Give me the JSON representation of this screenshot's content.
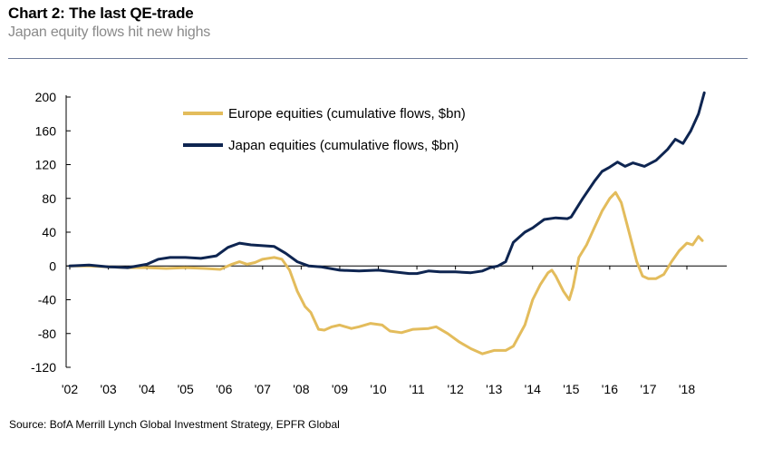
{
  "header": {
    "title": "Chart 2: The last QE-trade",
    "subtitle": "Japan equity flows hit new highs"
  },
  "footer": {
    "source": "Source:  BofA Merrill Lynch Global Investment Strategy, EPFR Global"
  },
  "chart_data": {
    "type": "line",
    "title": "Chart 2: The last QE-trade",
    "subtitle": "Japan equity flows hit new highs",
    "xlabel": "",
    "ylabel": "",
    "ylim": [
      -120,
      200
    ],
    "yticks": [
      200,
      160,
      120,
      80,
      40,
      0,
      -40,
      -80,
      -120
    ],
    "xlim": [
      2002,
      2018.55
    ],
    "xticks": [
      {
        "x": 2002,
        "label": "'02"
      },
      {
        "x": 2003,
        "label": "'03"
      },
      {
        "x": 2004,
        "label": "'04"
      },
      {
        "x": 2005,
        "label": "'05"
      },
      {
        "x": 2006,
        "label": "'06"
      },
      {
        "x": 2007,
        "label": "'07"
      },
      {
        "x": 2008,
        "label": "'08"
      },
      {
        "x": 2009,
        "label": "'09"
      },
      {
        "x": 2010,
        "label": "'10"
      },
      {
        "x": 2011,
        "label": "'11"
      },
      {
        "x": 2012,
        "label": "'12"
      },
      {
        "x": 2013,
        "label": "'13"
      },
      {
        "x": 2014,
        "label": "'14"
      },
      {
        "x": 2015,
        "label": "'15"
      },
      {
        "x": 2016,
        "label": "'16"
      },
      {
        "x": 2017,
        "label": "'17"
      },
      {
        "x": 2018,
        "label": "'18"
      }
    ],
    "grid": false,
    "legend_position": "top-center",
    "series": [
      {
        "name": "Europe equities (cumulative flows, $bn)",
        "color": "#e3bc5c",
        "points": [
          [
            2002.0,
            0
          ],
          [
            2002.5,
            0
          ],
          [
            2003.0,
            -1
          ],
          [
            2003.5,
            -2
          ],
          [
            2004.0,
            -2
          ],
          [
            2004.5,
            -3
          ],
          [
            2005.0,
            -2
          ],
          [
            2005.5,
            -3
          ],
          [
            2005.9,
            -4
          ],
          [
            2006.2,
            2
          ],
          [
            2006.4,
            5
          ],
          [
            2006.6,
            2
          ],
          [
            2006.8,
            4
          ],
          [
            2007.0,
            8
          ],
          [
            2007.3,
            10
          ],
          [
            2007.5,
            8
          ],
          [
            2007.7,
            -5
          ],
          [
            2007.9,
            -30
          ],
          [
            2008.1,
            -48
          ],
          [
            2008.25,
            -55
          ],
          [
            2008.45,
            -75
          ],
          [
            2008.6,
            -76
          ],
          [
            2008.8,
            -72
          ],
          [
            2009.0,
            -70
          ],
          [
            2009.3,
            -74
          ],
          [
            2009.5,
            -72
          ],
          [
            2009.8,
            -68
          ],
          [
            2010.1,
            -70
          ],
          [
            2010.3,
            -77
          ],
          [
            2010.6,
            -79
          ],
          [
            2010.9,
            -75
          ],
          [
            2011.3,
            -74
          ],
          [
            2011.5,
            -72
          ],
          [
            2011.8,
            -80
          ],
          [
            2012.1,
            -90
          ],
          [
            2012.4,
            -98
          ],
          [
            2012.7,
            -104
          ],
          [
            2013.0,
            -100
          ],
          [
            2013.3,
            -100
          ],
          [
            2013.5,
            -95
          ],
          [
            2013.8,
            -70
          ],
          [
            2014.0,
            -40
          ],
          [
            2014.2,
            -22
          ],
          [
            2014.4,
            -8
          ],
          [
            2014.5,
            -5
          ],
          [
            2014.6,
            -12
          ],
          [
            2014.8,
            -30
          ],
          [
            2014.95,
            -40
          ],
          [
            2015.05,
            -25
          ],
          [
            2015.2,
            10
          ],
          [
            2015.4,
            25
          ],
          [
            2015.6,
            45
          ],
          [
            2015.8,
            65
          ],
          [
            2016.0,
            80
          ],
          [
            2016.15,
            87
          ],
          [
            2016.3,
            75
          ],
          [
            2016.5,
            40
          ],
          [
            2016.7,
            5
          ],
          [
            2016.85,
            -12
          ],
          [
            2017.0,
            -15
          ],
          [
            2017.2,
            -15
          ],
          [
            2017.4,
            -10
          ],
          [
            2017.6,
            5
          ],
          [
            2017.8,
            18
          ],
          [
            2018.0,
            27
          ],
          [
            2018.15,
            25
          ],
          [
            2018.3,
            35
          ],
          [
            2018.4,
            30
          ]
        ]
      },
      {
        "name": "Japan equities (cumulative flows, $bn)",
        "color": "#0e2551",
        "points": [
          [
            2002.0,
            0
          ],
          [
            2002.5,
            1
          ],
          [
            2003.0,
            -1
          ],
          [
            2003.5,
            -2
          ],
          [
            2004.0,
            2
          ],
          [
            2004.3,
            8
          ],
          [
            2004.6,
            10
          ],
          [
            2005.0,
            10
          ],
          [
            2005.4,
            9
          ],
          [
            2005.8,
            12
          ],
          [
            2006.1,
            22
          ],
          [
            2006.4,
            27
          ],
          [
            2006.7,
            25
          ],
          [
            2007.0,
            24
          ],
          [
            2007.3,
            23
          ],
          [
            2007.6,
            15
          ],
          [
            2007.9,
            5
          ],
          [
            2008.2,
            0
          ],
          [
            2008.5,
            -1
          ],
          [
            2009.0,
            -5
          ],
          [
            2009.5,
            -6
          ],
          [
            2010.0,
            -5
          ],
          [
            2010.4,
            -7
          ],
          [
            2010.8,
            -9
          ],
          [
            2011.0,
            -9
          ],
          [
            2011.3,
            -6
          ],
          [
            2011.6,
            -7
          ],
          [
            2012.0,
            -7
          ],
          [
            2012.4,
            -8
          ],
          [
            2012.7,
            -6
          ],
          [
            2012.9,
            -2
          ],
          [
            2013.1,
            0
          ],
          [
            2013.3,
            5
          ],
          [
            2013.5,
            28
          ],
          [
            2013.8,
            40
          ],
          [
            2014.0,
            45
          ],
          [
            2014.3,
            55
          ],
          [
            2014.6,
            57
          ],
          [
            2014.9,
            56
          ],
          [
            2015.0,
            58
          ],
          [
            2015.3,
            80
          ],
          [
            2015.6,
            100
          ],
          [
            2015.8,
            112
          ],
          [
            2016.0,
            117
          ],
          [
            2016.2,
            123
          ],
          [
            2016.4,
            118
          ],
          [
            2016.6,
            122
          ],
          [
            2016.9,
            118
          ],
          [
            2017.2,
            125
          ],
          [
            2017.5,
            138
          ],
          [
            2017.7,
            150
          ],
          [
            2017.9,
            145
          ],
          [
            2018.1,
            160
          ],
          [
            2018.3,
            180
          ],
          [
            2018.45,
            205
          ]
        ]
      }
    ]
  }
}
